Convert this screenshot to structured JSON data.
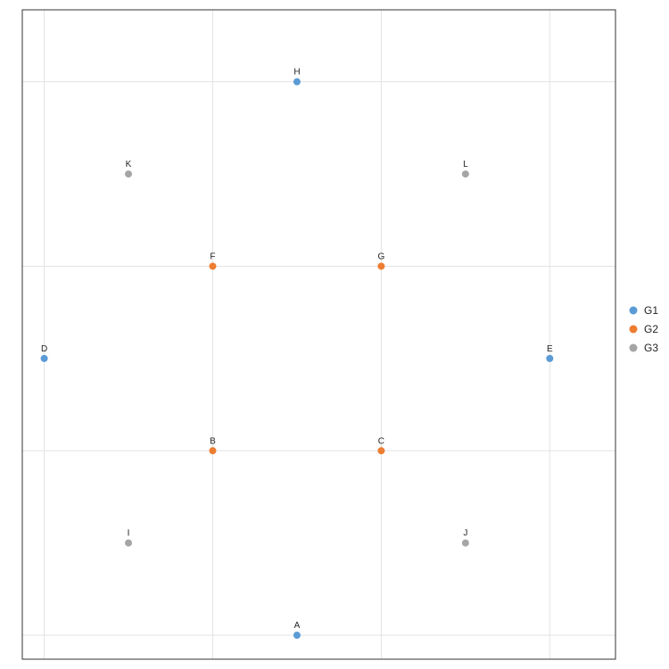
{
  "chart_data": {
    "type": "scatter",
    "title": "",
    "xlabel": "",
    "ylabel": "",
    "xlim": [
      -3.26,
      3.78
    ],
    "ylim": [
      -3.26,
      3.78
    ],
    "grid": true,
    "legend_position": "right",
    "series": [
      {
        "name": "G1",
        "color": "#5b9bd5",
        "points": [
          {
            "label": "A",
            "x": 0,
            "y": -3
          },
          {
            "label": "D",
            "x": -3,
            "y": 0
          },
          {
            "label": "E",
            "x": 3,
            "y": 0
          },
          {
            "label": "H",
            "x": 0,
            "y": 3
          }
        ]
      },
      {
        "name": "G2",
        "color": "#ed7d31",
        "points": [
          {
            "label": "B",
            "x": -1,
            "y": -1
          },
          {
            "label": "C",
            "x": 1,
            "y": -1
          },
          {
            "label": "F",
            "x": -1,
            "y": 1
          },
          {
            "label": "G",
            "x": 1,
            "y": 1
          }
        ]
      },
      {
        "name": "G3",
        "color": "#a5a5a5",
        "points": [
          {
            "label": "I",
            "x": -2,
            "y": -2
          },
          {
            "label": "J",
            "x": 2,
            "y": -2
          },
          {
            "label": "K",
            "x": -2,
            "y": 2
          },
          {
            "label": "L",
            "x": 2,
            "y": 2
          }
        ]
      }
    ]
  }
}
